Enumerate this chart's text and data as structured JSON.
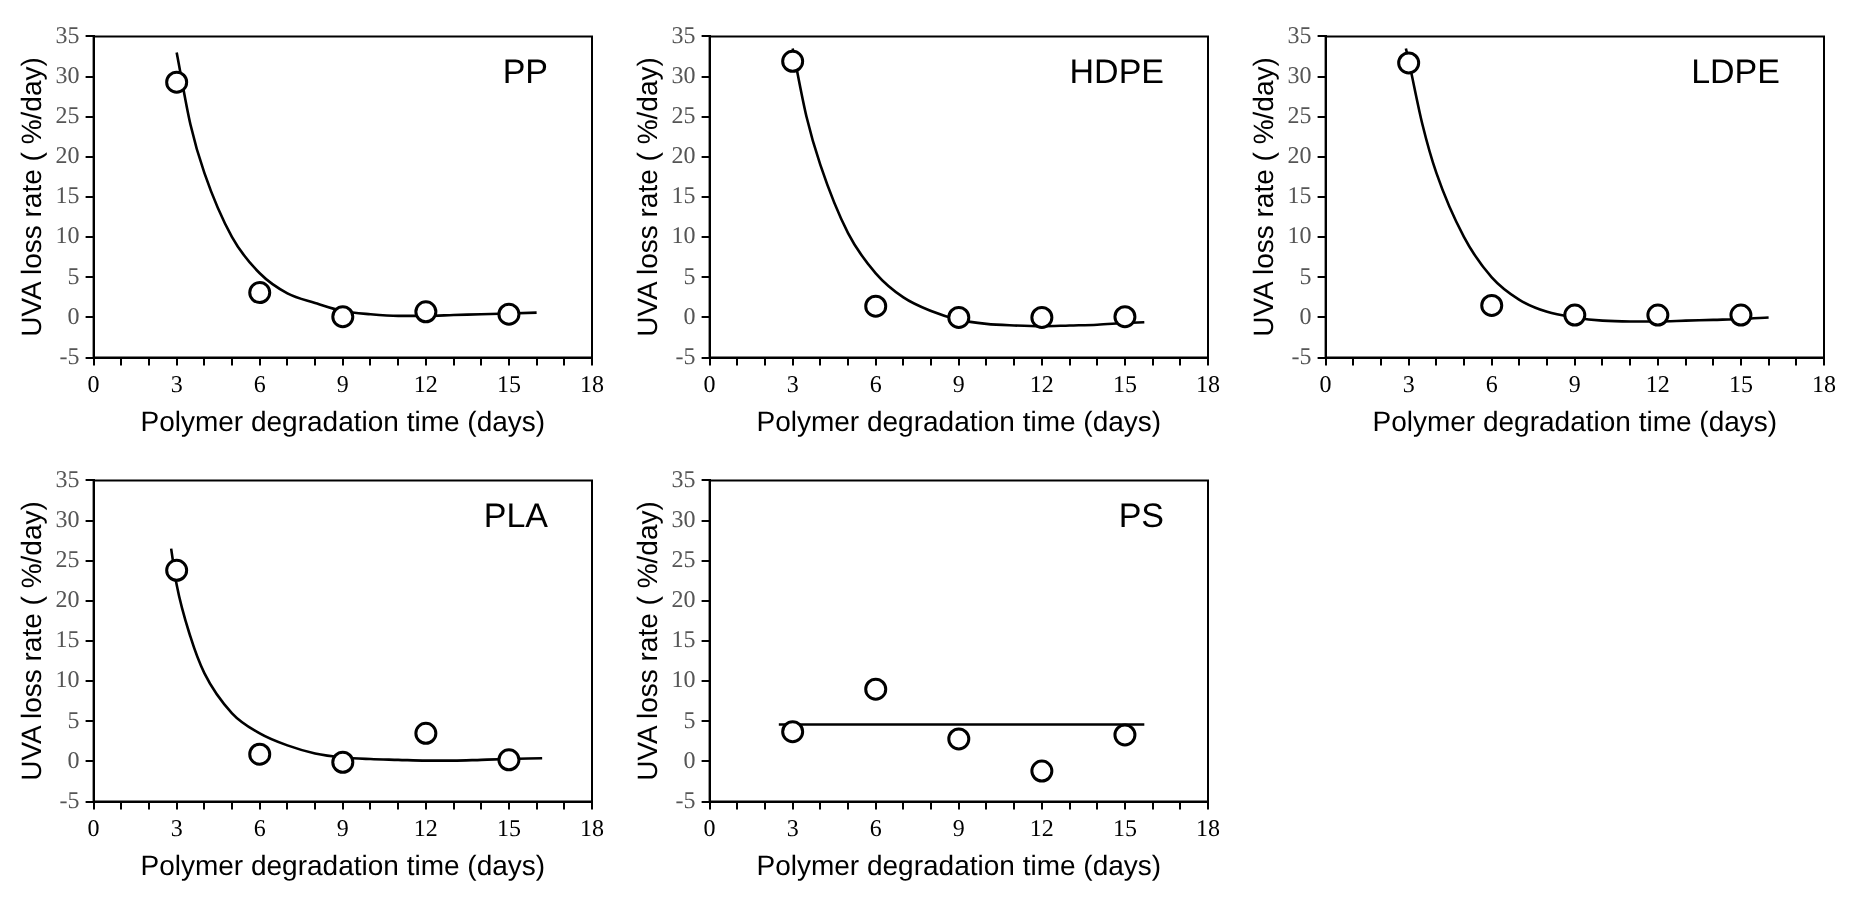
{
  "chart_data": [
    {
      "type": "scatter",
      "xlabel": "Polymer degradation time (days)",
      "ylabel": "UVA loss rate ( %/day)",
      "annotations": [
        "PP"
      ],
      "xlim": [
        0,
        18
      ],
      "ylim": [
        -5,
        35
      ],
      "xticks": [
        0,
        {
          "value": 1,
          "label": null
        },
        {
          "value": 2,
          "label": null
        },
        3,
        {
          "value": 4,
          "label": null
        },
        {
          "value": 5,
          "label": null
        },
        6,
        {
          "value": 7,
          "label": null
        },
        {
          "value": 8,
          "label": null
        },
        9,
        {
          "value": 10,
          "label": null
        },
        {
          "value": 11,
          "label": null
        },
        12,
        {
          "value": 13,
          "label": null
        },
        {
          "value": 14,
          "label": null
        },
        15,
        {
          "value": 16,
          "label": null
        },
        {
          "value": 17,
          "label": null
        },
        18
      ],
      "yticks": [
        -5,
        0,
        5,
        10,
        15,
        20,
        25,
        30,
        35
      ],
      "grid": false,
      "legend": false,
      "series": [
        {
          "marker": "circle",
          "color": "#000000",
          "x": [
            3,
            6,
            9,
            12,
            15
          ],
          "values": [
            29.3,
            3.1,
            0.1,
            0.7,
            0.4
          ]
        },
        {
          "type": "line",
          "marker": "none",
          "line_style": "solid",
          "color": "#000000",
          "x": [
            3,
            3.5,
            4,
            5,
            6,
            7,
            8,
            9,
            10,
            11,
            12,
            13,
            14,
            15,
            16
          ],
          "values": [
            33,
            24,
            18,
            10,
            5.5,
            3,
            1.8,
            0.8,
            0.4,
            0.2,
            0.2,
            0.3,
            0.4,
            0.5,
            0.6
          ]
        }
      ]
    },
    {
      "type": "scatter",
      "xlabel": "Polymer degradation time (days)",
      "ylabel": "UVA loss rate ( %/day)",
      "annotations": [
        "HDPE"
      ],
      "xlim": [
        0,
        18
      ],
      "ylim": [
        -5,
        35
      ],
      "xticks": [
        0,
        {
          "value": 1,
          "label": null
        },
        {
          "value": 2,
          "label": null
        },
        3,
        {
          "value": 4,
          "label": null
        },
        {
          "value": 5,
          "label": null
        },
        6,
        {
          "value": 7,
          "label": null
        },
        {
          "value": 8,
          "label": null
        },
        9,
        {
          "value": 10,
          "label": null
        },
        {
          "value": 11,
          "label": null
        },
        12,
        {
          "value": 13,
          "label": null
        },
        {
          "value": 14,
          "label": null
        },
        15,
        {
          "value": 16,
          "label": null
        },
        {
          "value": 17,
          "label": null
        },
        18
      ],
      "yticks": [
        -5,
        0,
        5,
        10,
        15,
        20,
        25,
        30,
        35
      ],
      "grid": false,
      "legend": false,
      "series": [
        {
          "marker": "circle",
          "color": "#000000",
          "x": [
            3,
            6,
            9,
            12,
            15
          ],
          "values": [
            31.9,
            1.4,
            0,
            0,
            0.1
          ]
        },
        {
          "type": "line",
          "marker": "none",
          "line_style": "solid",
          "color": "#000000",
          "x": [
            3,
            3.5,
            4,
            5,
            6,
            7,
            8,
            9,
            10,
            11,
            12,
            13,
            14,
            15,
            15.7
          ],
          "values": [
            33.5,
            25,
            19,
            10.5,
            5.5,
            2.5,
            0.8,
            -0.3,
            -0.8,
            -1,
            -1.1,
            -1,
            -0.9,
            -0.7,
            -0.6
          ]
        }
      ]
    },
    {
      "type": "scatter",
      "xlabel": "Polymer degradation time (days)",
      "ylabel": "UVA loss rate ( %/day)",
      "annotations": [
        "LDPE"
      ],
      "xlim": [
        0,
        18
      ],
      "ylim": [
        -5,
        35
      ],
      "xticks": [
        0,
        {
          "value": 1,
          "label": null
        },
        {
          "value": 2,
          "label": null
        },
        3,
        {
          "value": 4,
          "label": null
        },
        {
          "value": 5,
          "label": null
        },
        6,
        {
          "value": 7,
          "label": null
        },
        {
          "value": 8,
          "label": null
        },
        9,
        {
          "value": 10,
          "label": null
        },
        {
          "value": 11,
          "label": null
        },
        12,
        {
          "value": 13,
          "label": null
        },
        {
          "value": 14,
          "label": null
        },
        15,
        {
          "value": 16,
          "label": null
        },
        {
          "value": 17,
          "label": null
        },
        18
      ],
      "yticks": [
        -5,
        0,
        5,
        10,
        15,
        20,
        25,
        30,
        35
      ],
      "grid": false,
      "legend": false,
      "series": [
        {
          "marker": "circle",
          "color": "#000000",
          "x": [
            3,
            6,
            9,
            12,
            15
          ],
          "values": [
            31.7,
            1.5,
            0.3,
            0.3,
            0.3
          ]
        },
        {
          "type": "line",
          "marker": "none",
          "line_style": "solid",
          "color": "#000000",
          "x": [
            2.9,
            3,
            3.5,
            4,
            5,
            6,
            7,
            8,
            9,
            10,
            11,
            12,
            13,
            14,
            15,
            16
          ],
          "values": [
            33.5,
            32,
            24,
            18,
            10,
            5,
            2.2,
            0.7,
            0,
            -0.4,
            -0.5,
            -0.5,
            -0.4,
            -0.3,
            -0.2,
            0
          ]
        }
      ]
    },
    {
      "type": "scatter",
      "xlabel": "Polymer degradation time (days)",
      "ylabel": "UVA loss rate ( %/day)",
      "annotations": [
        "PLA"
      ],
      "xlim": [
        0,
        18
      ],
      "ylim": [
        -5,
        35
      ],
      "xticks": [
        0,
        {
          "value": 1,
          "label": null
        },
        {
          "value": 2,
          "label": null
        },
        3,
        {
          "value": 4,
          "label": null
        },
        {
          "value": 5,
          "label": null
        },
        6,
        {
          "value": 7,
          "label": null
        },
        {
          "value": 8,
          "label": null
        },
        9,
        {
          "value": 10,
          "label": null
        },
        {
          "value": 11,
          "label": null
        },
        12,
        {
          "value": 13,
          "label": null
        },
        {
          "value": 14,
          "label": null
        },
        15,
        {
          "value": 16,
          "label": null
        },
        {
          "value": 17,
          "label": null
        },
        18
      ],
      "yticks": [
        -5,
        0,
        5,
        10,
        15,
        20,
        25,
        30,
        35
      ],
      "grid": false,
      "legend": false,
      "series": [
        {
          "marker": "circle",
          "color": "#000000",
          "x": [
            3,
            6,
            9,
            12,
            15
          ],
          "values": [
            23.8,
            0.9,
            -0.1,
            3.5,
            0.2
          ]
        },
        {
          "type": "line",
          "marker": "none",
          "line_style": "solid",
          "color": "#000000",
          "x": [
            2.8,
            3,
            3.5,
            4,
            5,
            6,
            7,
            8,
            9,
            10,
            11,
            12,
            13,
            14,
            15,
            16.2
          ],
          "values": [
            26.5,
            22,
            15.5,
            11,
            6,
            3.5,
            2,
            1,
            0.5,
            0.3,
            0.2,
            0.1,
            0.1,
            0.2,
            0.3,
            0.4
          ]
        }
      ]
    },
    {
      "type": "scatter",
      "xlabel": "Polymer degradation time (days)",
      "ylabel": "UVA loss rate ( %/day)",
      "annotations": [
        "PS"
      ],
      "xlim": [
        0,
        18
      ],
      "ylim": [
        -5,
        35
      ],
      "xticks": [
        0,
        {
          "value": 1,
          "label": null
        },
        {
          "value": 2,
          "label": null
        },
        3,
        {
          "value": 4,
          "label": null
        },
        {
          "value": 5,
          "label": null
        },
        6,
        {
          "value": 7,
          "label": null
        },
        {
          "value": 8,
          "label": null
        },
        9,
        {
          "value": 10,
          "label": null
        },
        {
          "value": 11,
          "label": null
        },
        12,
        {
          "value": 13,
          "label": null
        },
        {
          "value": 14,
          "label": null
        },
        15,
        {
          "value": 16,
          "label": null
        },
        {
          "value": 17,
          "label": null
        },
        18
      ],
      "yticks": [
        -5,
        0,
        5,
        10,
        15,
        20,
        25,
        30,
        35
      ],
      "grid": false,
      "legend": false,
      "series": [
        {
          "marker": "circle",
          "color": "#000000",
          "x": [
            3,
            6,
            9,
            12,
            15
          ],
          "values": [
            3.7,
            9,
            2.8,
            -1.2,
            3.3
          ]
        },
        {
          "type": "line",
          "marker": "none",
          "line_style": "solid",
          "color": "#000000",
          "x": [
            2.5,
            15.7
          ],
          "values": [
            4.6,
            4.6
          ]
        }
      ]
    }
  ]
}
